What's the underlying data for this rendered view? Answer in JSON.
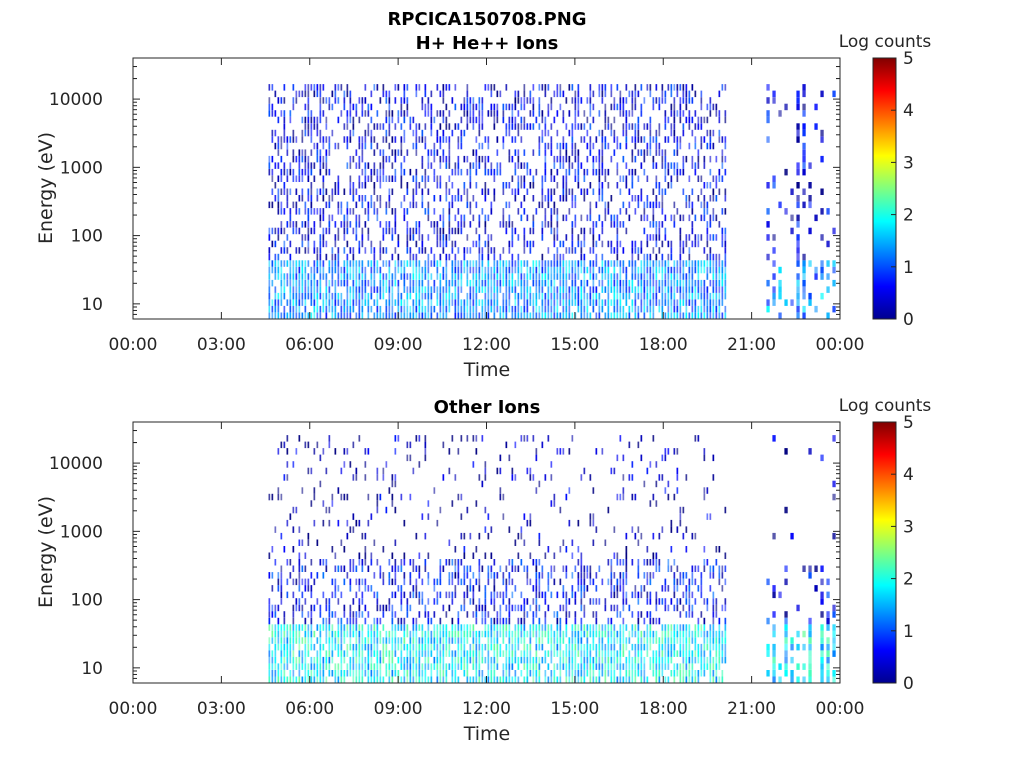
{
  "figure_title": "RPCICA150708.PNG",
  "chart_data": [
    {
      "type": "heatmap",
      "title": "H+ He++ Ions",
      "xlabel": "Time",
      "ylabel": "Energy (eV)",
      "x_ticks": [
        "00:00",
        "03:00",
        "06:00",
        "09:00",
        "12:00",
        "15:00",
        "18:00",
        "21:00",
        "00:00"
      ],
      "xlim_hours": [
        0,
        24
      ],
      "y_scale": "log",
      "ylim": [
        6,
        40000
      ],
      "y_ticks": [
        10,
        100,
        1000,
        10000
      ],
      "y_tick_labels": [
        "10",
        "100",
        "1000",
        "10000"
      ],
      "colorbar": {
        "label": "Log counts",
        "min": 0,
        "max": 5,
        "ticks": [
          "0",
          "1",
          "2",
          "3",
          "4",
          "5"
        ],
        "colormap": "jet"
      },
      "data_segments_hours": [
        [
          4.6,
          20.15
        ],
        [
          21.5,
          23.9
        ]
      ],
      "description_bands": [
        {
          "energy_range": [
            6,
            45
          ],
          "log_counts": 1.3
        },
        {
          "energy_range": [
            45,
            15000
          ],
          "log_counts": 0.5
        }
      ]
    },
    {
      "type": "heatmap",
      "title": "Other Ions",
      "xlabel": "Time",
      "ylabel": "Energy (eV)",
      "x_ticks": [
        "00:00",
        "03:00",
        "06:00",
        "09:00",
        "12:00",
        "15:00",
        "18:00",
        "21:00",
        "00:00"
      ],
      "xlim_hours": [
        0,
        24
      ],
      "y_scale": "log",
      "ylim": [
        6,
        40000
      ],
      "y_ticks": [
        10,
        100,
        1000,
        10000
      ],
      "y_tick_labels": [
        "10",
        "100",
        "1000",
        "10000"
      ],
      "colorbar": {
        "label": "Log counts",
        "min": 0,
        "max": 5,
        "ticks": [
          "0",
          "1",
          "2",
          "3",
          "4",
          "5"
        ],
        "colormap": "jet"
      },
      "data_segments_hours": [
        [
          4.6,
          20.15
        ],
        [
          21.5,
          23.9
        ]
      ],
      "description_bands": [
        {
          "energy_range": [
            6,
            45
          ],
          "log_counts": 1.8
        },
        {
          "energy_range": [
            45,
            400
          ],
          "log_counts": 0.6
        },
        {
          "energy_range": [
            400,
            25000
          ],
          "log_counts": 0.2
        }
      ]
    }
  ]
}
